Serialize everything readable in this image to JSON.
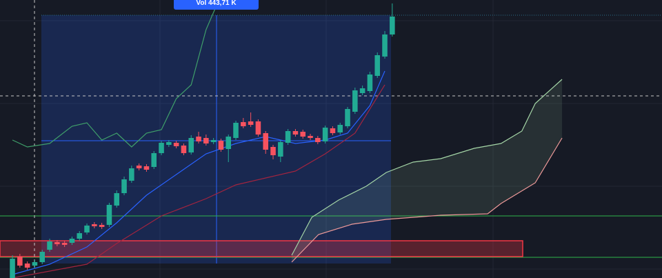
{
  "chart_data": {
    "type": "candlestick",
    "annotation": "Vol 443,71 K",
    "xlim": [
      -1.67,
      87.22
    ],
    "ylim": [
      0,
      403
    ],
    "up_color": "#22ab94",
    "down_color": "#f7525f",
    "open": [
      0,
      31,
      21,
      18,
      23,
      41,
      52,
      51,
      51,
      57,
      66,
      78,
      77,
      77,
      105,
      123,
      141,
      163,
      162,
      161,
      181,
      193,
      196,
      192,
      182,
      205,
      203,
      197,
      199,
      187,
      203,
      226,
      227,
      227,
      210,
      190,
      176,
      196,
      213,
      212,
      206,
      203,
      198,
      217,
      211,
      220,
      241,
      268,
      271,
      293,
      321,
      353
    ],
    "high": [
      33,
      35,
      24,
      26,
      41,
      57,
      55,
      54,
      60,
      68,
      79,
      81,
      80,
      109,
      127,
      147,
      163,
      166,
      165,
      184,
      199,
      200,
      199,
      195,
      207,
      212,
      208,
      203,
      202,
      208,
      228,
      232,
      240,
      230,
      213,
      193,
      200,
      216,
      216,
      215,
      209,
      206,
      221,
      220,
      225,
      248,
      276,
      279,
      299,
      327,
      358,
      398
    ],
    "low": [
      0,
      15,
      12,
      15,
      20,
      38,
      46,
      45,
      48,
      54,
      63,
      72,
      71,
      74,
      102,
      120,
      138,
      156,
      154,
      158,
      178,
      190,
      188,
      178,
      179,
      195,
      192,
      194,
      183,
      168,
      200,
      217,
      219,
      205,
      180,
      172,
      168,
      193,
      205,
      202,
      200,
      194,
      195,
      207,
      208,
      217,
      238,
      265,
      268,
      290,
      318,
      350
    ],
    "close": [
      28,
      18,
      15,
      23,
      38,
      53,
      49,
      48,
      57,
      65,
      76,
      75,
      74,
      106,
      123,
      143,
      159,
      159,
      157,
      181,
      196,
      197,
      191,
      181,
      203,
      198,
      195,
      200,
      186,
      205,
      225,
      220,
      222,
      208,
      186,
      178,
      197,
      213,
      208,
      205,
      203,
      197,
      218,
      210,
      222,
      245,
      272,
      275,
      295,
      323,
      353,
      379
    ],
    "series": [
      {
        "color": "#2962ff",
        "x": [
          0,
          5,
          10,
          14,
          18,
          22,
          26,
          30,
          34,
          38,
          42,
          45,
          48,
          50
        ],
        "values": [
          5,
          20,
          45,
          80,
          120,
          150,
          180,
          195,
          205,
          195,
          200,
          210,
          250,
          300
        ]
      },
      {
        "color": "#a3243f",
        "x": [
          0,
          10,
          14,
          20,
          26,
          30,
          34,
          38,
          42,
          46,
          50
        ],
        "values": [
          0,
          20,
          50,
          90,
          115,
          135,
          145,
          155,
          180,
          210,
          280
        ]
      },
      {
        "color": "#3f9f6a",
        "x": [
          0,
          2,
          5,
          8,
          10,
          12,
          14,
          16,
          18,
          20,
          22,
          24,
          26,
          28
        ],
        "values": [
          200,
          190,
          195,
          220,
          225,
          200,
          210,
          190,
          210,
          215,
          260,
          280,
          360,
          410
        ]
      },
      {
        "color": "#a5d6a7",
        "x": [
          37.5,
          40.2,
          43.8,
          47.5,
          50.2,
          53.8,
          57.5,
          62,
          65.6,
          68.4,
          70.2,
          73.8
        ],
        "values": [
          33,
          88,
          113,
          133,
          153,
          168,
          173,
          188,
          195,
          213,
          253,
          288
        ]
      },
      {
        "color": "#ef9a9a",
        "x": [
          37.5,
          41.1,
          45.6,
          50.2,
          57.5,
          63.8,
          65.6,
          70.2,
          73.8
        ],
        "values": [
          23,
          63,
          78,
          85,
          91,
          93,
          108,
          138,
          203
        ]
      }
    ]
  }
}
